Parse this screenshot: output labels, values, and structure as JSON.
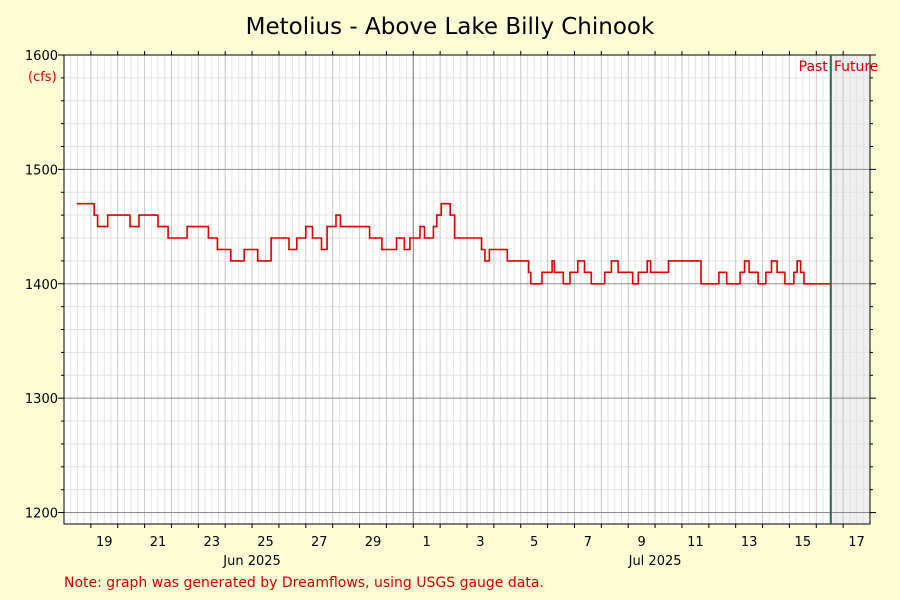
{
  "chart_data": {
    "type": "line",
    "title": "Metolius - Above Lake Billy Chinook",
    "ylabel": "(cfs)",
    "ylim": [
      1190,
      1600
    ],
    "y_ticks": [
      1200,
      1300,
      1400,
      1500,
      1600
    ],
    "x_range": [
      "2025-06-18",
      "2025-07-18"
    ],
    "x_tick_labels": [
      "19",
      "21",
      "23",
      "25",
      "27",
      "29",
      "1",
      "3",
      "5",
      "7",
      "9",
      "11",
      "13",
      "15",
      "17"
    ],
    "month_labels": [
      "Jun 2025",
      "Jul 2025"
    ],
    "past_label": "Past",
    "future_label": "Future",
    "now": "2025-07-16T13:00",
    "grid": true,
    "note": "Note: graph was generated by Dreamflows, using USGS gauge data.",
    "colors": {
      "series": "#dd0000",
      "now_line": "#2f6b52",
      "future_shade": "#efefef",
      "background": "#fdfdd5"
    },
    "series": [
      {
        "x": [
          "2025-06-18T12:00",
          "2025-06-19T03:00",
          "2025-06-19T06:00",
          "2025-06-19T12:00",
          "2025-06-19T15:00",
          "2025-06-20T08:00",
          "2025-06-20T11:00",
          "2025-06-20T16:00",
          "2025-06-20T19:00",
          "2025-06-21T09:00",
          "2025-06-21T12:00",
          "2025-06-21T18:00",
          "2025-06-21T21:00",
          "2025-06-22T14:00",
          "2025-06-23T09:00",
          "2025-06-23T12:00",
          "2025-06-23T17:00",
          "2025-06-24T05:00",
          "2025-06-24T12:00",
          "2025-06-24T17:00",
          "2025-06-25T05:00",
          "2025-06-25T12:00",
          "2025-06-25T17:00",
          "2025-06-26T04:00",
          "2025-06-26T09:00",
          "2025-06-26T16:00",
          "2025-06-27T00:00",
          "2025-06-27T06:00",
          "2025-06-27T14:00",
          "2025-06-27T19:00",
          "2025-06-28T03:00",
          "2025-06-28T07:00",
          "2025-06-29T09:00",
          "2025-06-29T14:00",
          "2025-06-29T20:00",
          "2025-06-30T09:00",
          "2025-06-30T12:00",
          "2025-06-30T16:00",
          "2025-06-30T21:00",
          "2025-07-01T06:00",
          "2025-07-01T10:00",
          "2025-07-01T14:00",
          "2025-07-01T18:00",
          "2025-07-01T21:00",
          "2025-07-02T01:00",
          "2025-07-02T04:00",
          "2025-07-02T09:00",
          "2025-07-02T13:00",
          "2025-07-02T17:00",
          "2025-07-03T13:00",
          "2025-07-03T16:00",
          "2025-07-03T20:00",
          "2025-07-04T08:00",
          "2025-07-04T12:00",
          "2025-07-05T07:00",
          "2025-07-05T09:00",
          "2025-07-05T13:00",
          "2025-07-05T19:00",
          "2025-07-06T04:00",
          "2025-07-06T06:00",
          "2025-07-06T08:00",
          "2025-07-06T14:00",
          "2025-07-06T20:00",
          "2025-07-07T03:00",
          "2025-07-07T09:00",
          "2025-07-07T15:00",
          "2025-07-08T03:00",
          "2025-07-08T09:00",
          "2025-07-08T15:00",
          "2025-07-09T04:00",
          "2025-07-09T09:00",
          "2025-07-09T17:00",
          "2025-07-09T20:00",
          "2025-07-10T12:00",
          "2025-07-11T14:00",
          "2025-07-11T17:00",
          "2025-07-12T05:00",
          "2025-07-12T09:00",
          "2025-07-12T16:00",
          "2025-07-13T04:00",
          "2025-07-13T08:00",
          "2025-07-13T12:00",
          "2025-07-13T20:00",
          "2025-07-14T03:00",
          "2025-07-14T08:00",
          "2025-07-14T13:00",
          "2025-07-14T20:00",
          "2025-07-15T04:00",
          "2025-07-15T07:00",
          "2025-07-15T10:00",
          "2025-07-15T13:00",
          "2025-07-16T13:00"
        ],
        "y": [
          1470,
          1460,
          1450,
          1450,
          1460,
          1460,
          1450,
          1450,
          1460,
          1460,
          1450,
          1450,
          1440,
          1450,
          1440,
          1440,
          1430,
          1420,
          1420,
          1430,
          1420,
          1420,
          1440,
          1440,
          1430,
          1440,
          1450,
          1440,
          1430,
          1450,
          1460,
          1450,
          1440,
          1440,
          1430,
          1440,
          1440,
          1430,
          1440,
          1450,
          1440,
          1440,
          1450,
          1460,
          1470,
          1470,
          1460,
          1440,
          1440,
          1430,
          1420,
          1430,
          1430,
          1420,
          1410,
          1400,
          1400,
          1410,
          1420,
          1410,
          1410,
          1400,
          1410,
          1420,
          1410,
          1400,
          1410,
          1420,
          1410,
          1400,
          1410,
          1420,
          1410,
          1420,
          1420,
          1400,
          1400,
          1410,
          1400,
          1410,
          1420,
          1410,
          1400,
          1410,
          1420,
          1410,
          1400,
          1410,
          1420,
          1410,
          1400,
          1400
        ]
      }
    ]
  }
}
